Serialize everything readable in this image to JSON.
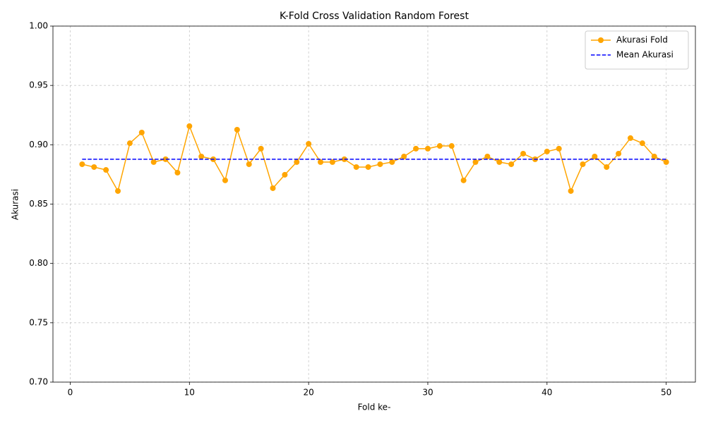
{
  "chart_data": {
    "type": "line",
    "title": "K-Fold Cross Validation Random Forest",
    "xlabel": "Fold ke-",
    "ylabel": "Akurasi",
    "xlim": [
      -1.45,
      52.45
    ],
    "xticks": [
      0,
      10,
      20,
      30,
      40,
      50
    ],
    "ylim": [
      0.7,
      1.0
    ],
    "yticks": [
      {
        "value": 0.7,
        "label": "0.70"
      },
      0.75,
      {
        "value": 0.8,
        "label": "0.80"
      },
      0.85,
      {
        "value": 0.9,
        "label": "0.90"
      },
      0.95,
      {
        "value": 1.0,
        "label": "1.00"
      }
    ],
    "grid": true,
    "legend": "upper right",
    "series": [
      {
        "name": "Akurasi Fold",
        "color": "#ffa500",
        "style": "solid",
        "marker": "o",
        "x": [
          1,
          2,
          3,
          4,
          5,
          6,
          7,
          8,
          9,
          10,
          11,
          12,
          13,
          14,
          15,
          16,
          17,
          18,
          19,
          20,
          21,
          22,
          23,
          24,
          25,
          26,
          27,
          28,
          29,
          30,
          31,
          32,
          33,
          34,
          35,
          36,
          37,
          38,
          39,
          40,
          41,
          42,
          43,
          44,
          45,
          46,
          47,
          48,
          49,
          50
        ],
        "values": [
          0.8836,
          0.8812,
          0.8788,
          0.861,
          0.9013,
          0.9103,
          0.8854,
          0.8878,
          0.8765,
          0.9157,
          0.8901,
          0.8878,
          0.87,
          0.9127,
          0.8836,
          0.8967,
          0.8634,
          0.8747,
          0.8854,
          0.9008,
          0.8854,
          0.8854,
          0.8878,
          0.8812,
          0.8812,
          0.8836,
          0.8854,
          0.8901,
          0.8967,
          0.8967,
          0.899,
          0.899,
          0.87,
          0.8854,
          0.8901,
          0.8854,
          0.8836,
          0.8925,
          0.8878,
          0.8943,
          0.8967,
          0.861,
          0.8836,
          0.8901,
          0.8812,
          0.8925,
          0.9056,
          0.9013,
          0.8901,
          0.8854
        ]
      },
      {
        "name": "Mean Akurasi",
        "color": "#0000ff",
        "style": "dashed",
        "x": [
          1,
          50
        ],
        "values": [
          0.8878,
          0.8878
        ]
      }
    ]
  }
}
